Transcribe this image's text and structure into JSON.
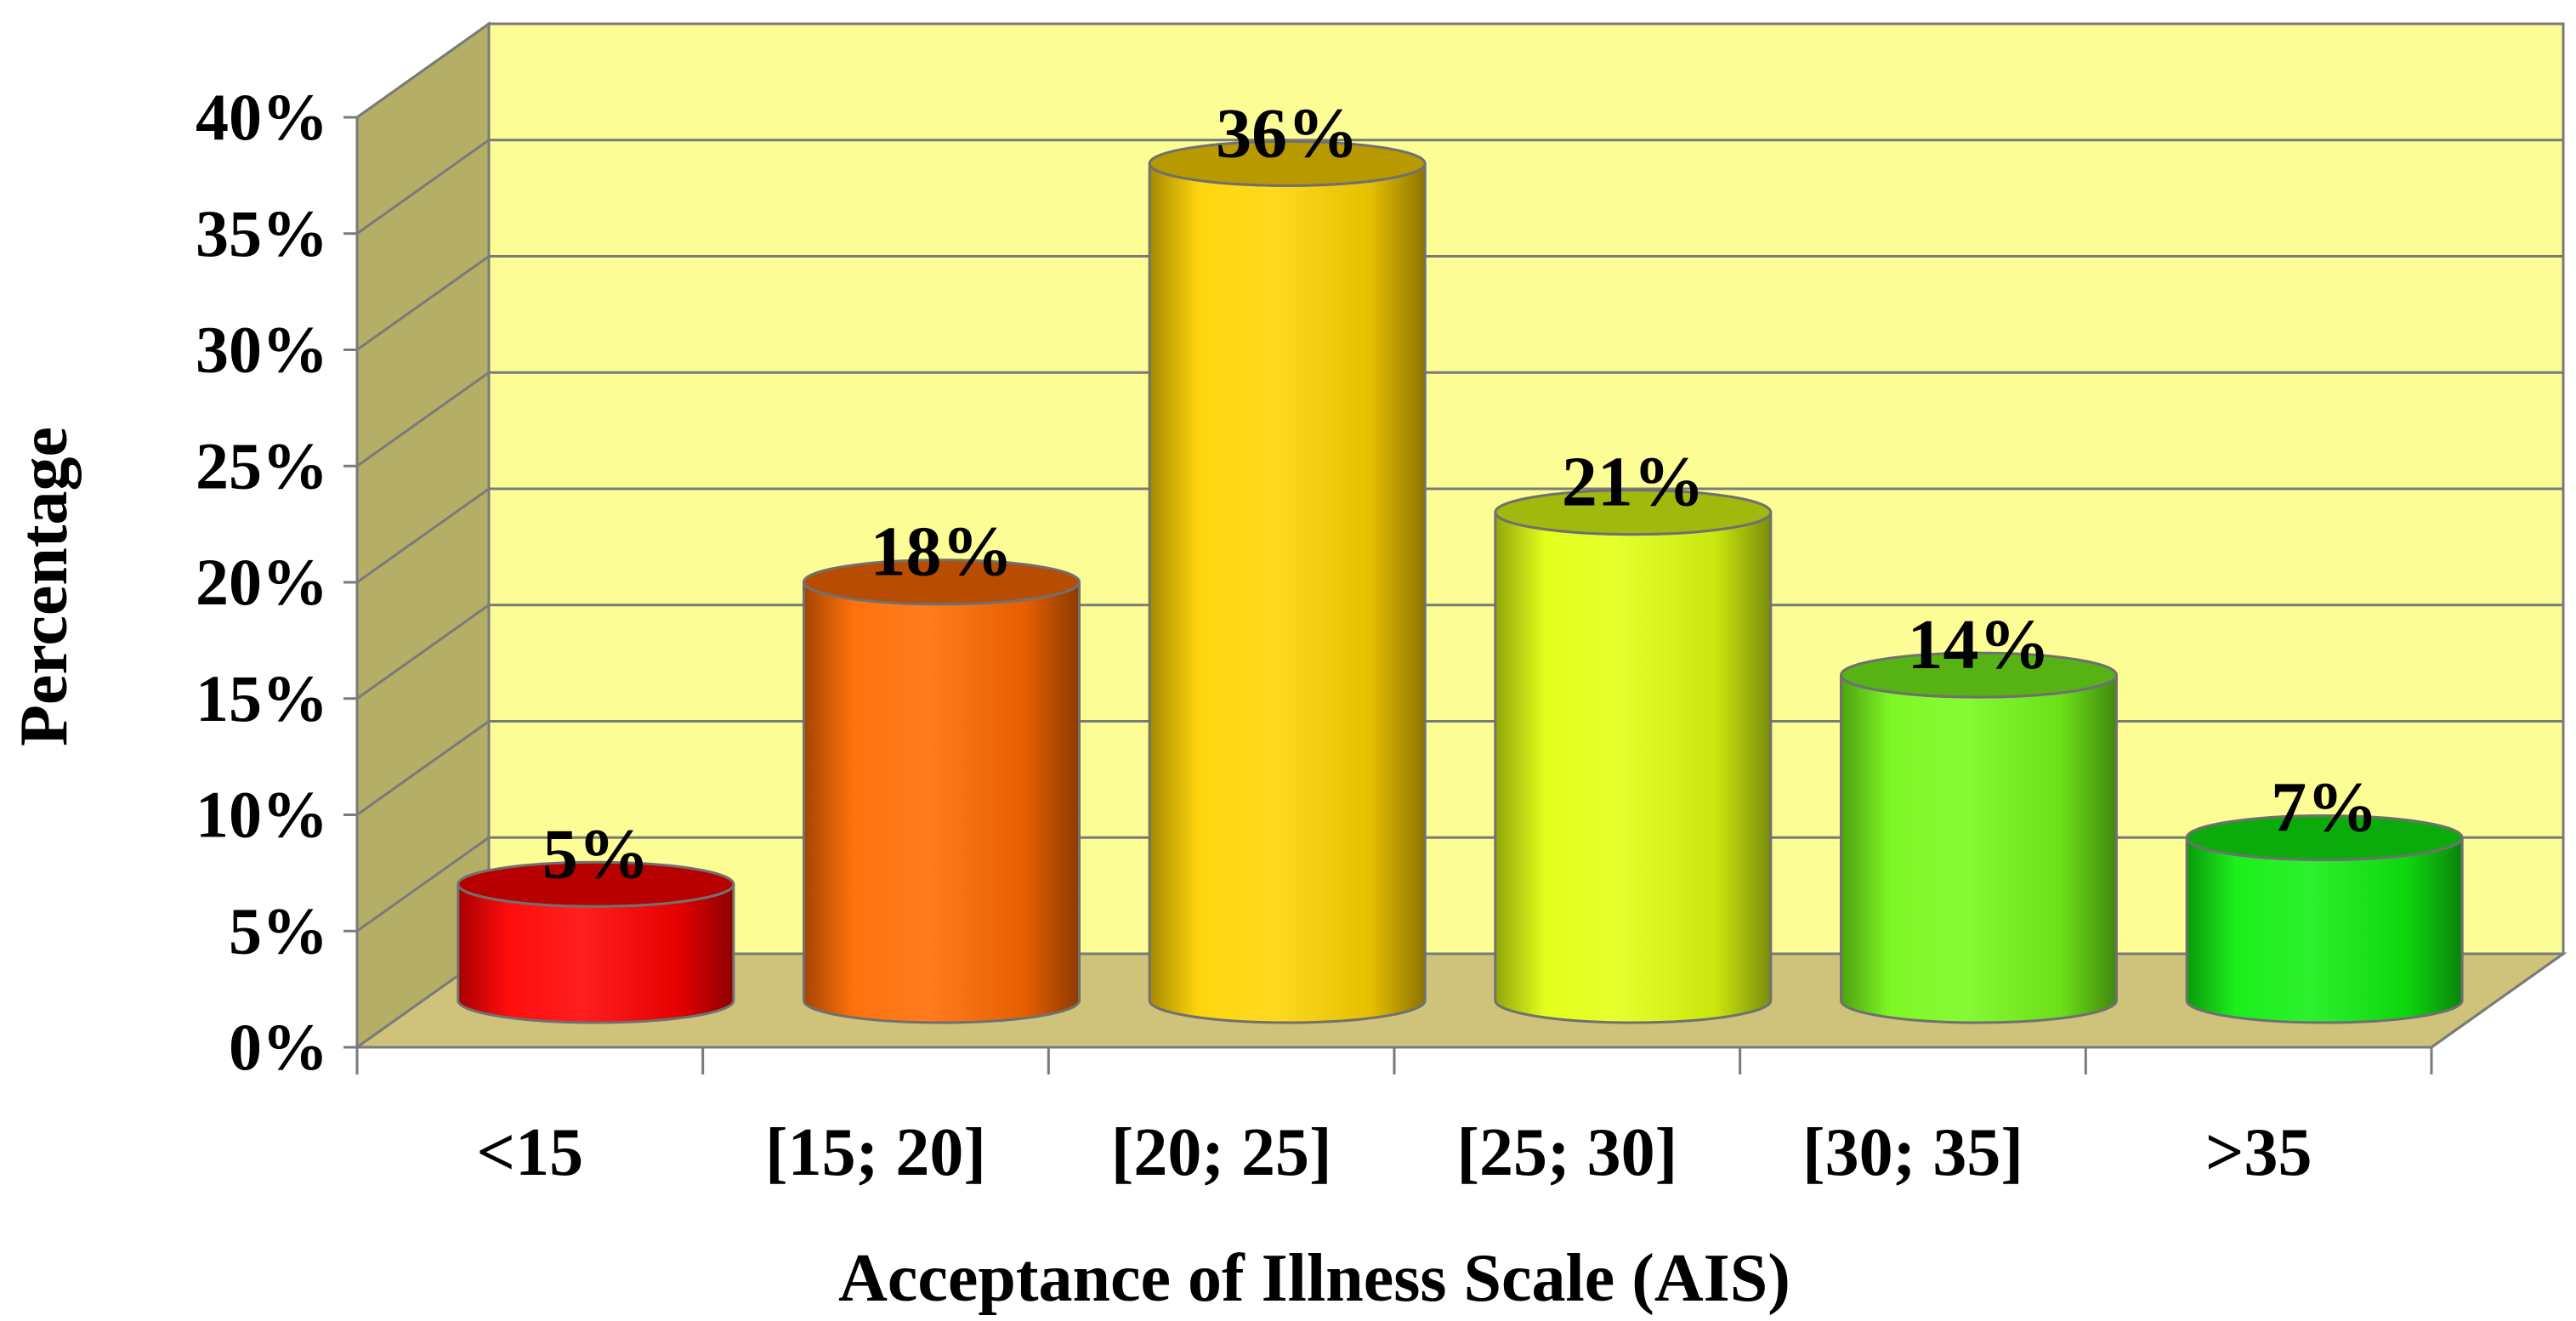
{
  "chart_data": {
    "type": "bar",
    "style": "3d-cylinder",
    "title": "",
    "xlabel": "Acceptance of Illness Scale (AIS)",
    "ylabel": "Percentage",
    "categories": [
      "<15",
      "[15; 20]",
      "[20; 25]",
      "[25; 30]",
      "[30; 35]",
      ">35"
    ],
    "values": [
      5,
      18,
      36,
      21,
      14,
      7
    ],
    "value_labels": [
      "5%",
      "18%",
      "36%",
      "21%",
      "14%",
      "7%"
    ],
    "ylim": [
      0,
      40
    ],
    "yticks": [
      0,
      5,
      10,
      15,
      20,
      25,
      30,
      35,
      40
    ],
    "ytick_labels": [
      "0%",
      "5%",
      "10%",
      "15%",
      "20%",
      "25%",
      "30%",
      "35%",
      "40%"
    ],
    "grid": true,
    "legend": "none",
    "colors": {
      "bars": [
        "#ff0000",
        "#ff6a00",
        "#ffd400",
        "#e0ff10",
        "#77f81a",
        "#10ee10"
      ],
      "back_wall": "#fdfd96",
      "side_wall": "#b5ae66",
      "floor": "#cfc27a",
      "gridline": "#7a7a7a"
    }
  }
}
